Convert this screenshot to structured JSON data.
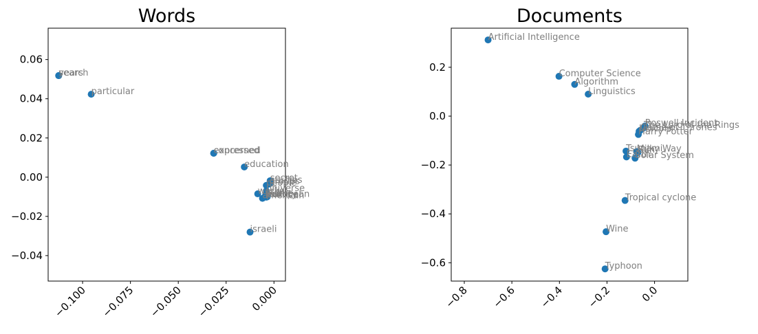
{
  "colors": {
    "point": "#1f77b4",
    "label": "#7f7f7f"
  },
  "chart_data": [
    {
      "type": "scatter",
      "title": "Words",
      "xlim": [
        -0.118,
        0.006
      ],
      "ylim": [
        -0.053,
        0.076
      ],
      "xticks": [
        -0.1,
        -0.075,
        -0.05,
        -0.025,
        0.0
      ],
      "xtick_labels": [
        "−0.100",
        "−0.075",
        "−0.050",
        "−0.025",
        "0.000"
      ],
      "yticks": [
        -0.04,
        -0.02,
        0.0,
        0.02,
        0.04,
        0.06
      ],
      "ytick_labels": [
        "−0.04",
        "−0.02",
        "0.00",
        "0.02",
        "0.04",
        "0.06"
      ],
      "points": [
        {
          "label": "search",
          "x": -0.1125,
          "y": 0.0518
        },
        {
          "label": "years",
          "x": -0.1125,
          "y": 0.0518
        },
        {
          "label": "particular",
          "x": -0.0955,
          "y": 0.0423
        },
        {
          "label": "expressed",
          "x": -0.0315,
          "y": 0.0122
        },
        {
          "label": "concerned",
          "x": -0.0315,
          "y": 0.0122
        },
        {
          "label": "education",
          "x": -0.0155,
          "y": 0.0052
        },
        {
          "label": "secret",
          "x": -0.002,
          "y": -0.0018
        },
        {
          "label": "studies",
          "x": -0.002,
          "y": -0.0028
        },
        {
          "label": "groups",
          "x": -0.0025,
          "y": -0.0035
        },
        {
          "label": "people",
          "x": -0.004,
          "y": -0.0042
        },
        {
          "label": "universe",
          "x": -0.004,
          "y": -0.007
        },
        {
          "label": "works",
          "x": -0.0085,
          "y": -0.0085
        },
        {
          "label": "public",
          "x": -0.0045,
          "y": -0.0095
        },
        {
          "label": "history",
          "x": -0.004,
          "y": -0.01
        },
        {
          "label": "political",
          "x": -0.004,
          "y": -0.0102
        },
        {
          "label": "american",
          "x": -0.006,
          "y": -0.0108
        },
        {
          "label": "european",
          "x": -0.0035,
          "y": -0.01
        },
        {
          "label": "israeli",
          "x": -0.0125,
          "y": -0.028
        }
      ]
    },
    {
      "type": "scatter",
      "title": "Documents",
      "xlim": [
        -0.855,
        0.14
      ],
      "ylim": [
        -0.675,
        0.36
      ],
      "xticks": [
        -0.8,
        -0.6,
        -0.4,
        -0.2,
        0.0
      ],
      "xtick_labels": [
        "−0.8",
        "−0.6",
        "−0.4",
        "−0.2",
        "0.0"
      ],
      "yticks": [
        -0.6,
        -0.4,
        -0.2,
        0.0,
        0.2
      ],
      "ytick_labels": [
        "−0.6",
        "−0.4",
        "−0.2",
        "0.0",
        "0.2"
      ],
      "points": [
        {
          "label": "Artificial Intelligence",
          "x": -0.7,
          "y": 0.312
        },
        {
          "label": "Computer Science",
          "x": -0.402,
          "y": 0.163
        },
        {
          "label": "Algorithm",
          "x": -0.336,
          "y": 0.13
        },
        {
          "label": "Linguistics",
          "x": -0.279,
          "y": 0.09
        },
        {
          "label": "Roswell Incident",
          "x": -0.04,
          "y": -0.04
        },
        {
          "label": "The Lord of the Rings",
          "x": -0.045,
          "y": -0.048
        },
        {
          "label": "Game of Thrones",
          "x": -0.06,
          "y": -0.058
        },
        {
          "label": "Unicorn",
          "x": -0.065,
          "y": -0.062
        },
        {
          "label": "Harry Potter",
          "x": -0.068,
          "y": -0.075
        },
        {
          "label": "Tsunami",
          "x": -0.12,
          "y": -0.143
        },
        {
          "label": "Milky Way",
          "x": -0.075,
          "y": -0.145
        },
        {
          "label": "Sun",
          "x": -0.07,
          "y": -0.149
        },
        {
          "label": "Earth",
          "x": -0.118,
          "y": -0.167
        },
        {
          "label": "Solar System",
          "x": -0.082,
          "y": -0.172
        },
        {
          "label": "Tropical cyclone",
          "x": -0.124,
          "y": -0.345
        },
        {
          "label": "Wine",
          "x": -0.204,
          "y": -0.473
        },
        {
          "label": "Typhoon",
          "x": -0.208,
          "y": -0.625
        }
      ]
    }
  ]
}
